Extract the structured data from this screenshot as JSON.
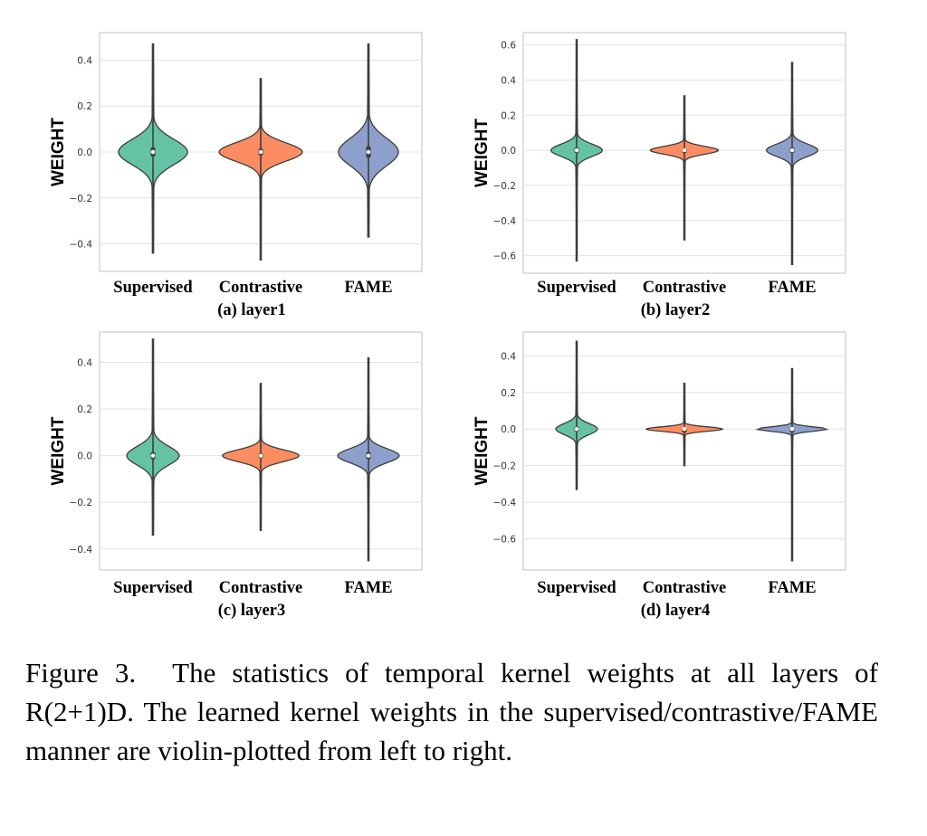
{
  "figure": {
    "label": "Figure 3.",
    "caption": "The statistics of temporal kernel weights at all layers of R(2+1)D. The learned kernel weights in the supervised/contrastive/FAME manner are violin-plotted from left to right."
  },
  "colors": {
    "supervised": "#66c2a5",
    "contrastive": "#fc8d62",
    "fame": "#8da0cb",
    "grid": "#e3e3e3",
    "frame": "#cccccc",
    "line": "#3d3d3d"
  },
  "chart_data": [
    {
      "type": "violin",
      "subtitle": "(a) layer1",
      "ylabel": "WEIGHT",
      "categories": [
        "Supervised",
        "Contrastive",
        "FAME"
      ],
      "ylim": [
        -0.52,
        0.52
      ],
      "yticks": [
        0.4,
        0.2,
        0.0,
        -0.2,
        -0.4
      ],
      "ytick_labels": [
        "0.4",
        "0.2",
        "0.0",
        "−0.2",
        "−0.4"
      ],
      "series": [
        {
          "name": "Supervised",
          "min": -0.44,
          "max": 0.47,
          "q1": -0.02,
          "median": 0.0,
          "q3": 0.02,
          "peak_halfwidth": 0.83,
          "spread": 0.055
        },
        {
          "name": "Contrastive",
          "min": -0.47,
          "max": 0.32,
          "q1": -0.015,
          "median": 0.0,
          "q3": 0.015,
          "peak_halfwidth": 1.0,
          "spread": 0.04
        },
        {
          "name": "FAME",
          "min": -0.37,
          "max": 0.47,
          "q1": -0.025,
          "median": 0.0,
          "q3": 0.025,
          "peak_halfwidth": 0.72,
          "spread": 0.06
        }
      ]
    },
    {
      "type": "violin",
      "subtitle": "(b) layer2",
      "ylabel": "WEIGHT",
      "categories": [
        "Supervised",
        "Contrastive",
        "FAME"
      ],
      "ylim": [
        -0.7,
        0.67
      ],
      "yticks": [
        0.6,
        0.4,
        0.2,
        0.0,
        -0.2,
        -0.4,
        -0.6
      ],
      "ytick_labels": [
        "0.6",
        "0.4",
        "0.2",
        "0.0",
        "−0.2",
        "−0.4",
        "−0.6"
      ],
      "series": [
        {
          "name": "Supervised",
          "min": -0.63,
          "max": 0.63,
          "q1": -0.015,
          "median": 0.0,
          "q3": 0.015,
          "peak_halfwidth": 0.62,
          "spread": 0.035
        },
        {
          "name": "Contrastive",
          "min": -0.51,
          "max": 0.31,
          "q1": -0.01,
          "median": 0.0,
          "q3": 0.01,
          "peak_halfwidth": 0.82,
          "spread": 0.022
        },
        {
          "name": "FAME",
          "min": -0.65,
          "max": 0.5,
          "q1": -0.015,
          "median": 0.0,
          "q3": 0.015,
          "peak_halfwidth": 0.62,
          "spread": 0.035
        }
      ]
    },
    {
      "type": "violin",
      "subtitle": "(c) layer3",
      "ylabel": "WEIGHT",
      "categories": [
        "Supervised",
        "Contrastive",
        "FAME"
      ],
      "ylim": [
        -0.49,
        0.53
      ],
      "yticks": [
        0.4,
        0.2,
        0.0,
        -0.2,
        -0.4
      ],
      "ytick_labels": [
        "0.4",
        "0.2",
        "0.0",
        "−0.2",
        "−0.4"
      ],
      "series": [
        {
          "name": "Supervised",
          "min": -0.34,
          "max": 0.5,
          "q1": -0.015,
          "median": 0.0,
          "q3": 0.015,
          "peak_halfwidth": 0.63,
          "spread": 0.04
        },
        {
          "name": "Contrastive",
          "min": -0.32,
          "max": 0.31,
          "q1": -0.01,
          "median": 0.0,
          "q3": 0.01,
          "peak_halfwidth": 0.92,
          "spread": 0.025
        },
        {
          "name": "FAME",
          "min": -0.45,
          "max": 0.42,
          "q1": -0.015,
          "median": 0.0,
          "q3": 0.015,
          "peak_halfwidth": 0.74,
          "spread": 0.03
        }
      ]
    },
    {
      "type": "violin",
      "subtitle": "(d) layer4",
      "ylabel": "WEIGHT",
      "categories": [
        "Supervised",
        "Contrastive",
        "FAME"
      ],
      "ylim": [
        -0.77,
        0.53
      ],
      "yticks": [
        0.4,
        0.2,
        0.0,
        -0.2,
        -0.4,
        -0.6
      ],
      "ytick_labels": [
        "0.4",
        "0.2",
        "0.0",
        "−0.2",
        "−0.4",
        "−0.6"
      ],
      "series": [
        {
          "name": "Supervised",
          "min": -0.33,
          "max": 0.48,
          "q1": -0.012,
          "median": 0.0,
          "q3": 0.012,
          "peak_halfwidth": 0.5,
          "spread": 0.03
        },
        {
          "name": "Contrastive",
          "min": -0.2,
          "max": 0.25,
          "q1": -0.006,
          "median": 0.0,
          "q3": 0.006,
          "peak_halfwidth": 0.92,
          "spread": 0.012
        },
        {
          "name": "FAME",
          "min": -0.72,
          "max": 0.33,
          "q1": -0.006,
          "median": 0.0,
          "q3": 0.006,
          "peak_halfwidth": 0.85,
          "spread": 0.012
        }
      ]
    }
  ]
}
